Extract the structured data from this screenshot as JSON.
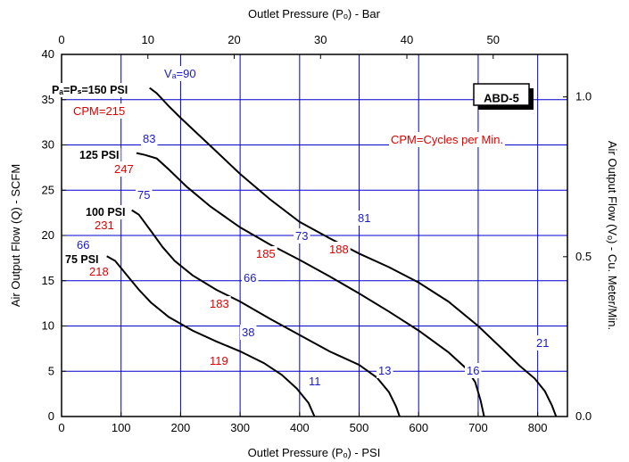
{
  "chart_data": {
    "type": "line",
    "xlabel": "Outlet Pressure (Pₒ) - PSI",
    "x2label": "Outlet Pressure (Pₒ) - Bar",
    "ylabel": "Air Output Flow (Q) - SCFM",
    "y2label": "Air Output Flow (Vₒ) - Cu. Meter/Min.",
    "xlim": [
      0,
      850
    ],
    "ylim": [
      0,
      40
    ],
    "x2lim": [
      0,
      58.6
    ],
    "y2lim": [
      0,
      1.133
    ],
    "xticks": [
      "0",
      "100",
      "200",
      "300",
      "400",
      "500",
      "600",
      "700",
      "800"
    ],
    "yticks": [
      "0",
      "5",
      "10",
      "15",
      "20",
      "25",
      "30",
      "35",
      "40"
    ],
    "x2ticks": [
      "0",
      "10",
      "20",
      "30",
      "40",
      "50"
    ],
    "y2ticks": [
      "0.0",
      "0.5",
      "1.0"
    ],
    "grid": true,
    "grid_color": "#0000cc",
    "model_label": "ABD-5",
    "note": "CPM=Cycles per Min.",
    "series": [
      {
        "name": "75 PSI",
        "label": "75 PSI",
        "cpm": "218",
        "points": [
          [
            76,
            17.7
          ],
          [
            90,
            17.2
          ],
          [
            110,
            15.6
          ],
          [
            130,
            14
          ],
          [
            150,
            12.6
          ],
          [
            180,
            11
          ],
          [
            220,
            9.5
          ],
          [
            260,
            8.3
          ],
          [
            300,
            7.2
          ],
          [
            340,
            5.9
          ],
          [
            370,
            4.6
          ],
          [
            395,
            3.1
          ],
          [
            415,
            1.5
          ],
          [
            425,
            0
          ]
        ]
      },
      {
        "name": "100 PSI",
        "label": "100 PSI",
        "cpm": "231",
        "points": [
          [
            118,
            22.8
          ],
          [
            130,
            22.3
          ],
          [
            150,
            20.5
          ],
          [
            170,
            18.7
          ],
          [
            190,
            17.2
          ],
          [
            220,
            15.6
          ],
          [
            260,
            14
          ],
          [
            300,
            12.7
          ],
          [
            350,
            10.8
          ],
          [
            400,
            9
          ],
          [
            450,
            7.2
          ],
          [
            500,
            5.7
          ],
          [
            530,
            4.3
          ],
          [
            550,
            2.7
          ],
          [
            562,
            1.1
          ],
          [
            568,
            0
          ]
        ]
      },
      {
        "name": "125 PSI",
        "label": "125 PSI",
        "cpm": "247",
        "points": [
          [
            126,
            29.1
          ],
          [
            140,
            28.9
          ],
          [
            160,
            28.5
          ],
          [
            180,
            27.3
          ],
          [
            210,
            25.4
          ],
          [
            250,
            23.2
          ],
          [
            300,
            20.9
          ],
          [
            350,
            19
          ],
          [
            400,
            17.3
          ],
          [
            450,
            15.5
          ],
          [
            500,
            13.6
          ],
          [
            550,
            11.6
          ],
          [
            600,
            9.5
          ],
          [
            650,
            7.1
          ],
          [
            680,
            5.3
          ],
          [
            695,
            3.8
          ],
          [
            704,
            1.8
          ],
          [
            710,
            0
          ]
        ]
      },
      {
        "name": "150 PSI",
        "label": "Pₐ=Pₛ=150 PSI",
        "cpm": "CPM=215",
        "points": [
          [
            148,
            36.3
          ],
          [
            160,
            35.7
          ],
          [
            180,
            34.3
          ],
          [
            200,
            33
          ],
          [
            250,
            29.9
          ],
          [
            300,
            26.8
          ],
          [
            350,
            24
          ],
          [
            400,
            21.5
          ],
          [
            450,
            19.7
          ],
          [
            500,
            18
          ],
          [
            550,
            16.5
          ],
          [
            600,
            14.8
          ],
          [
            650,
            12.7
          ],
          [
            700,
            10
          ],
          [
            740,
            7.5
          ],
          [
            770,
            5.6
          ],
          [
            795,
            4.2
          ],
          [
            812,
            2.8
          ],
          [
            824,
            1.2
          ],
          [
            831,
            0
          ]
        ]
      }
    ],
    "annotations_blue": [
      "Vₐ=90",
      "83",
      "75",
      "66",
      "81",
      "73",
      "66",
      "38",
      "21",
      "16",
      "13",
      "11"
    ],
    "annotations_red": [
      "188",
      "185",
      "183",
      "119"
    ]
  }
}
